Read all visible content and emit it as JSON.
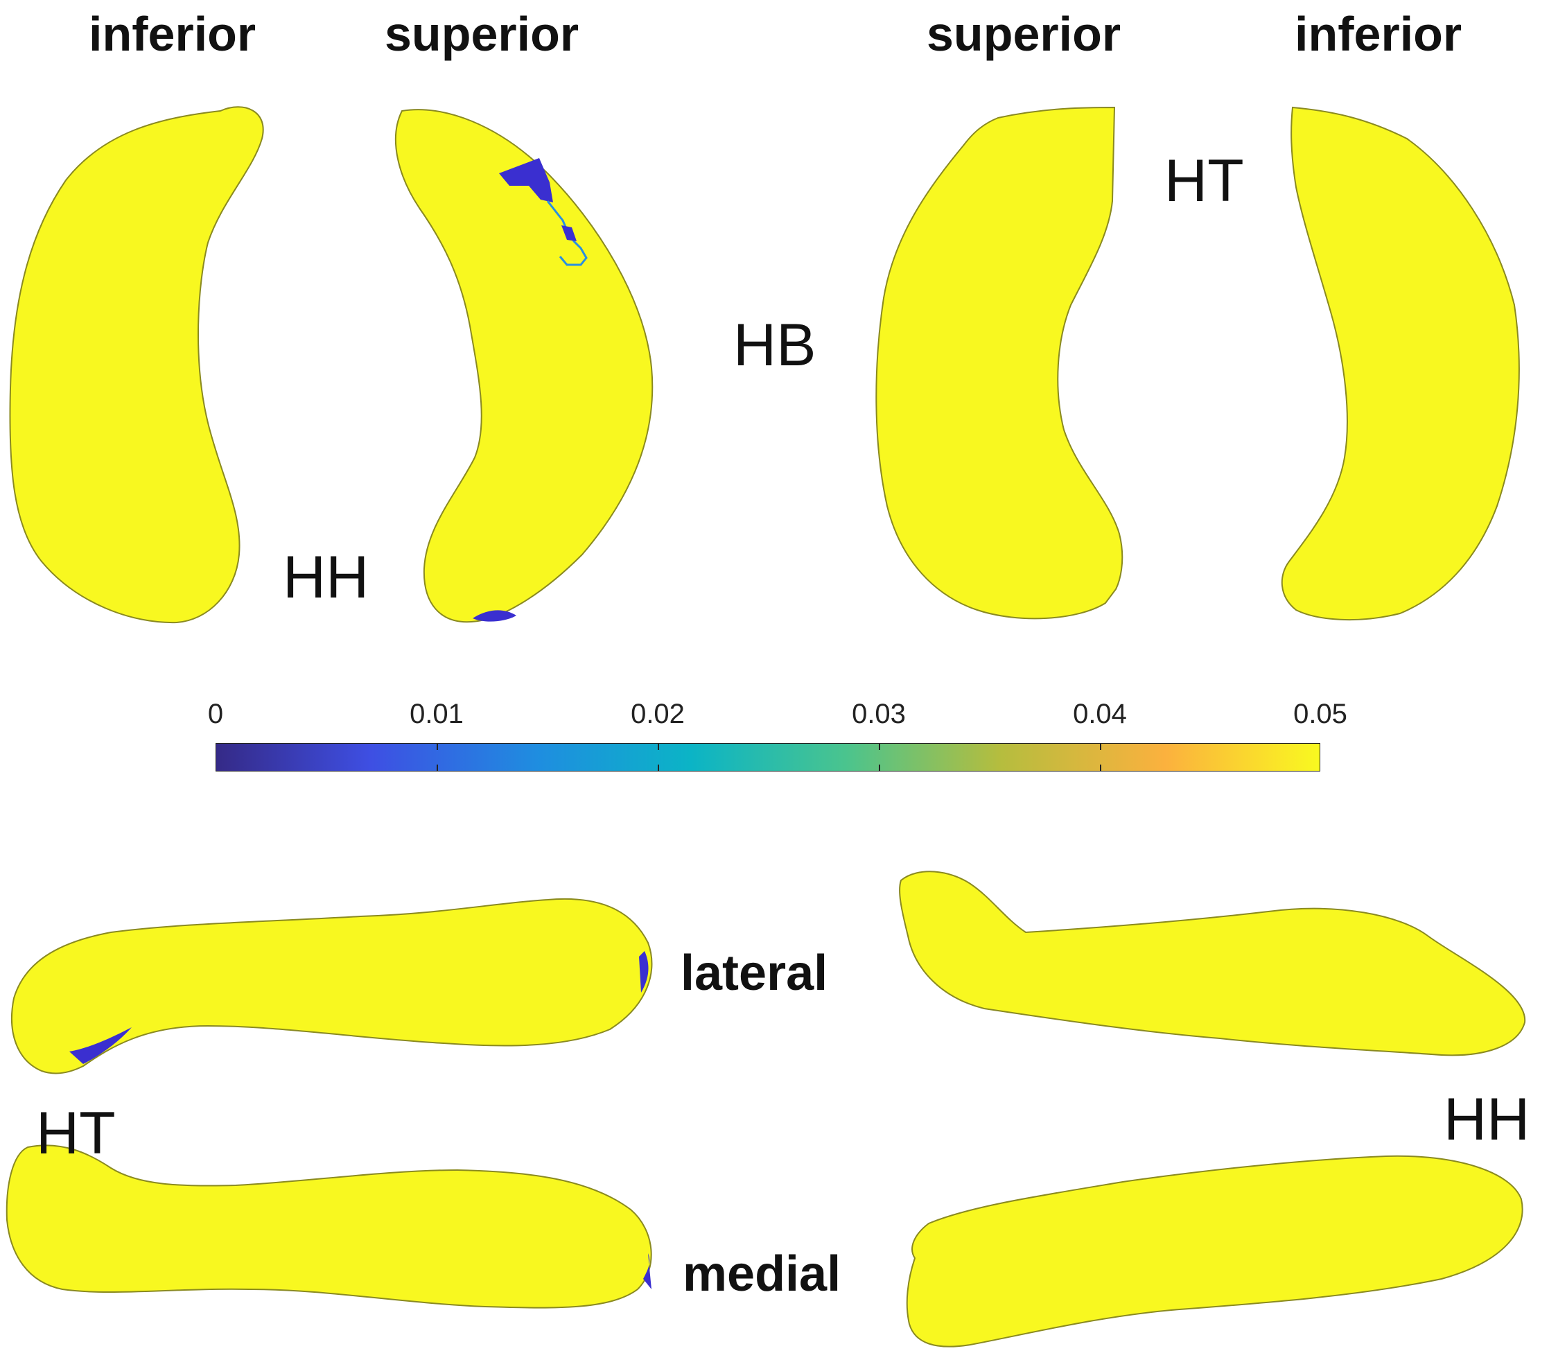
{
  "view_labels": {
    "inferior_left": "inferior",
    "superior_left": "superior",
    "superior_right": "superior",
    "inferior_right": "inferior",
    "lateral": "lateral",
    "medial": "medial"
  },
  "region_labels": {
    "hh_top": "HH",
    "hb": "HB",
    "ht_top": "HT",
    "ht_bottom": "HT",
    "hh_bottom": "HH"
  },
  "colorbar": {
    "ticks": [
      "0",
      "0.01",
      "0.02",
      "0.03",
      "0.04",
      "0.05"
    ],
    "min": 0,
    "max": 0.05,
    "colormap": "parula",
    "colors": [
      "#352a87",
      "#3e4fe3",
      "#1f8de0",
      "#0bb4c6",
      "#4ac48e",
      "#b5bd3e",
      "#fbb13e",
      "#f9f920"
    ]
  },
  "colors": {
    "surface": "#f8f820",
    "significant": "#3a2fd0"
  }
}
